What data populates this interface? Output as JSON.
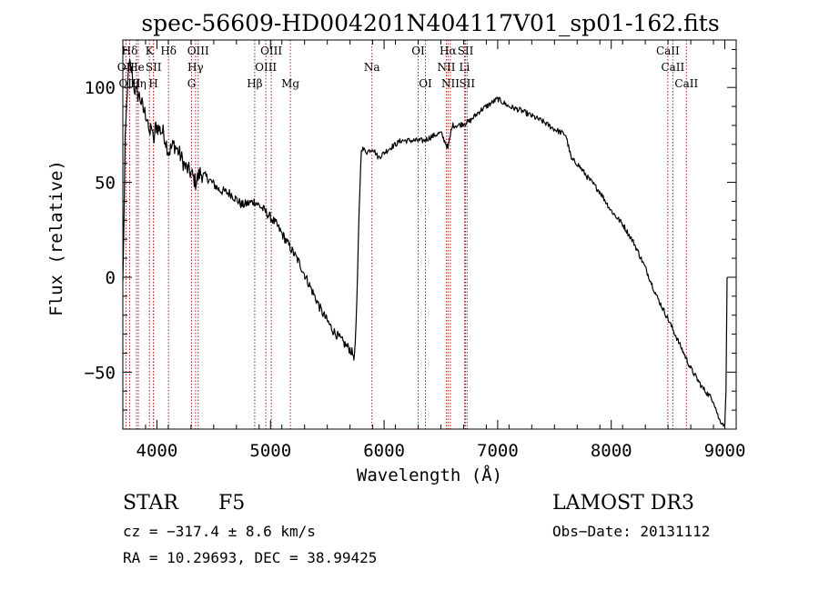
{
  "chart_data": {
    "type": "line",
    "title": "spec-56609-HD004201N404117V01_sp01-162.fits",
    "xlabel": "Wavelength (Å)",
    "ylabel": "Flux (relative)",
    "xlim": [
      3700,
      9100
    ],
    "ylim": [
      -80,
      125
    ],
    "xticks": [
      4000,
      5000,
      6000,
      7000,
      8000,
      9000
    ],
    "xtick_labels": [
      "4000",
      "5000",
      "6000",
      "7000",
      "8000",
      "9000"
    ],
    "yticks": [
      100,
      50,
      0,
      -50
    ],
    "ytick_labels": [
      "100",
      "50",
      "0",
      "−50"
    ],
    "series": [
      {
        "name": "flux",
        "x": [
          3700,
          3705,
          3720,
          3740,
          3760,
          3780,
          3800,
          3820,
          3850,
          3880,
          3900,
          3920,
          3934,
          3950,
          3969,
          3990,
          4020,
          4060,
          4102,
          4150,
          4200,
          4250,
          4300,
          4340,
          4380,
          4450,
          4550,
          4650,
          4750,
          4861,
          4950,
          5050,
          5150,
          5250,
          5350,
          5450,
          5550,
          5650,
          5700,
          5740,
          5760,
          5780,
          5800,
          5850,
          5900,
          5950,
          6050,
          6150,
          6250,
          6350,
          6450,
          6500,
          6563,
          6600,
          6650,
          6750,
          6850,
          6950,
          7000,
          7100,
          7200,
          7300,
          7400,
          7500,
          7600,
          7650,
          7700,
          7800,
          7900,
          8000,
          8100,
          8200,
          8300,
          8400,
          8500,
          8600,
          8700,
          8800,
          8900,
          8950,
          9000,
          9010,
          9020
        ],
        "y": [
          -2,
          12,
          70,
          100,
          112,
          108,
          100,
          97,
          95,
          88,
          86,
          84,
          72,
          82,
          70,
          80,
          78,
          76,
          66,
          70,
          65,
          58,
          55,
          50,
          55,
          52,
          46,
          44,
          38,
          40,
          35,
          28,
          18,
          8,
          -5,
          -18,
          -28,
          -35,
          -38,
          -42,
          -15,
          35,
          68,
          66,
          68,
          63,
          68,
          72,
          72,
          72,
          75,
          76,
          68,
          80,
          80,
          82,
          88,
          92,
          94,
          90,
          88,
          85,
          82,
          78,
          75,
          62,
          60,
          52,
          45,
          35,
          28,
          18,
          5,
          -10,
          -22,
          -35,
          -48,
          -58,
          -65,
          -75,
          -78,
          -60,
          0
        ]
      }
    ],
    "lines": [
      {
        "label": "Hδ",
        "x": 3760,
        "row": 0
      },
      {
        "label": "OII",
        "x": 3727,
        "row": 1
      },
      {
        "label": "He",
        "x": 3820,
        "row": 1
      },
      {
        "label": "OIII",
        "x": 3760,
        "row": 2
      },
      {
        "label": "Hη",
        "x": 3836,
        "row": 2
      },
      {
        "label": "K",
        "x": 3934,
        "row": 0
      },
      {
        "label": "SII",
        "x": 3970,
        "row": 1
      },
      {
        "label": "H",
        "x": 3969,
        "row": 2
      },
      {
        "label": "Hδ",
        "x": 4102,
        "row": 0
      },
      {
        "label": "OIII",
        "x": 4363,
        "row": 0
      },
      {
        "label": "Hγ",
        "x": 4340,
        "row": 1
      },
      {
        "label": "G",
        "x": 4305,
        "row": 2
      },
      {
        "label": "Hβ",
        "x": 4861,
        "row": 2
      },
      {
        "label": "OIII",
        "x": 5007,
        "row": 0
      },
      {
        "label": "OIII",
        "x": 4959,
        "row": 1
      },
      {
        "label": "Mg",
        "x": 5175,
        "row": 2
      },
      {
        "label": "Na",
        "x": 5893,
        "row": 1
      },
      {
        "label": "OI",
        "x": 6300,
        "row": 0
      },
      {
        "label": "OI",
        "x": 6364,
        "row": 2
      },
      {
        "label": "Hα",
        "x": 6563,
        "row": 0
      },
      {
        "label": "NII",
        "x": 6548,
        "row": 1
      },
      {
        "label": "NII",
        "x": 6584,
        "row": 2
      },
      {
        "label": "SII",
        "x": 6717,
        "row": 0
      },
      {
        "label": "Li",
        "x": 6708,
        "row": 1
      },
      {
        "label": "SII",
        "x": 6731,
        "row": 2
      },
      {
        "label": "CaII",
        "x": 8498,
        "row": 0
      },
      {
        "label": "CaII",
        "x": 8542,
        "row": 1
      },
      {
        "label": "CaII",
        "x": 8662,
        "row": 2
      }
    ]
  },
  "info": {
    "class": "STAR",
    "subclass": "F5",
    "survey": "LAMOST DR3",
    "cz": "cz = −317.4 ± 8.6 km/s",
    "obs_date": "Obs−Date: 20131112",
    "coords": "RA =  10.29693, DEC =  38.99425"
  },
  "colors": {
    "axis": "#000000",
    "spectrum": "#000000",
    "line_marker": "#aa2222"
  }
}
